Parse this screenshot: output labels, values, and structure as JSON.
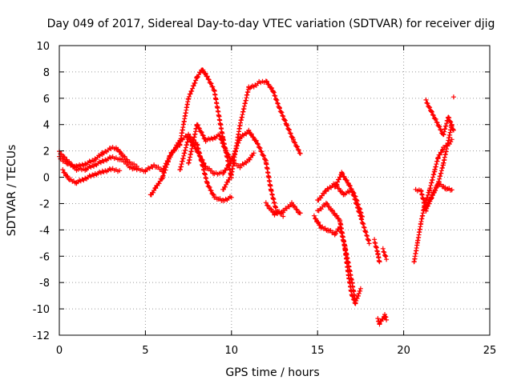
{
  "chart_data": {
    "type": "scatter",
    "title": "Day 049 of 2017, Sidereal Day-to-day VTEC variation (SDTVAR) for receiver djig",
    "xlabel": "GPS time / hours",
    "ylabel": "SDTVAR / TECUs",
    "xlim": [
      0,
      25
    ],
    "ylim": [
      -12,
      10
    ],
    "xticks": [
      0,
      5,
      10,
      15,
      20,
      25
    ],
    "yticks": [
      -12,
      -10,
      -8,
      -6,
      -4,
      -2,
      0,
      2,
      4,
      6,
      8,
      10
    ],
    "grid": true,
    "marker": "+",
    "marker_color": "#ff0000",
    "series": [
      {
        "x": [
          0.0,
          0.5,
          1.0,
          1.5,
          2.0,
          2.5,
          3.0,
          3.3,
          3.6,
          4.0,
          4.5
        ],
        "y": [
          1.5,
          1.0,
          0.8,
          1.0,
          1.3,
          1.8,
          2.2,
          2.2,
          1.8,
          1.2,
          0.8
        ]
      },
      {
        "x": [
          0.0,
          0.5,
          1.0,
          1.5,
          2.0,
          2.5,
          3.0,
          3.5,
          4.0
        ],
        "y": [
          1.9,
          1.2,
          0.6,
          0.6,
          0.9,
          1.2,
          1.5,
          1.4,
          1.0
        ]
      },
      {
        "x": [
          0.2,
          0.6,
          1.0,
          1.5,
          2.0,
          2.5,
          3.0,
          3.5
        ],
        "y": [
          0.5,
          -0.2,
          -0.4,
          -0.1,
          0.2,
          0.4,
          0.6,
          0.5
        ]
      },
      {
        "x": [
          4.0,
          4.5,
          5.0,
          5.5,
          6.0,
          6.5,
          7.0,
          7.5,
          8.0,
          8.3,
          8.6,
          9.0,
          9.5,
          10.0
        ],
        "y": [
          0.8,
          0.6,
          0.5,
          0.9,
          0.5,
          1.8,
          2.5,
          6.0,
          7.6,
          8.2,
          7.6,
          6.6,
          3.0,
          0.0
        ]
      },
      {
        "x": [
          5.3,
          5.6,
          6.0,
          6.4,
          7.0,
          7.5,
          8.0,
          8.3,
          8.6,
          9.0,
          9.5,
          10.0
        ],
        "y": [
          -1.4,
          -0.8,
          0.0,
          1.5,
          2.8,
          3.2,
          2.5,
          1.0,
          -0.5,
          -1.5,
          -1.8,
          -1.5
        ]
      },
      {
        "x": [
          7.5,
          8.0,
          8.5,
          9.0,
          9.3,
          9.6,
          10.0,
          10.5,
          11.0,
          11.3
        ],
        "y": [
          1.0,
          4.0,
          2.8,
          3.0,
          3.2,
          2.2,
          1.2,
          0.8,
          1.3,
          1.8
        ]
      },
      {
        "x": [
          7.0,
          7.5,
          8.0,
          8.5,
          9.0,
          9.5,
          10.0,
          10.5,
          11.0,
          11.5,
          12.0,
          12.3,
          12.6,
          13.0
        ],
        "y": [
          0.5,
          3.0,
          2.0,
          0.8,
          0.3,
          0.3,
          1.2,
          3.0,
          3.5,
          2.6,
          1.2,
          -1.0,
          -2.5,
          -2.9
        ]
      },
      {
        "x": [
          9.5,
          10.0,
          10.5,
          11.0,
          11.3,
          11.6,
          12.0,
          12.4,
          12.8,
          13.2,
          13.6,
          14.0
        ],
        "y": [
          -1.0,
          0.2,
          4.0,
          6.8,
          6.9,
          7.2,
          7.3,
          6.6,
          5.2,
          4.0,
          2.8,
          1.8
        ]
      },
      {
        "x": [
          12.0,
          12.5,
          13.0,
          13.5,
          14.0
        ],
        "y": [
          -2.0,
          -2.8,
          -2.6,
          -2.0,
          -2.8
        ]
      },
      {
        "x": [
          15.0,
          15.5,
          16.0,
          16.5,
          17.0,
          17.5,
          18.0
        ],
        "y": [
          -1.8,
          -1.0,
          -0.5,
          -1.3,
          -1.0,
          -3.0,
          -5.0
        ]
      },
      {
        "x": [
          14.8,
          15.2,
          15.6,
          16.0,
          16.3,
          16.6,
          17.0,
          17.2,
          17.5
        ],
        "y": [
          -3.0,
          -3.8,
          -4.0,
          -4.3,
          -3.8,
          -5.3,
          -8.0,
          -9.5,
          -8.5
        ]
      },
      {
        "x": [
          15.0,
          15.5,
          16.0,
          16.3,
          16.6,
          16.8,
          17.0,
          17.2
        ],
        "y": [
          -2.6,
          -2.0,
          -2.8,
          -3.3,
          -5.5,
          -7.5,
          -9.0,
          -9.6
        ]
      },
      {
        "x": [
          16.0,
          16.4,
          16.8,
          17.2,
          17.6
        ],
        "y": [
          -0.8,
          0.3,
          -0.5,
          -1.5,
          -3.0
        ]
      },
      {
        "x": [
          18.3,
          18.5,
          18.6
        ],
        "y": [
          -4.8,
          -5.8,
          -6.5
        ]
      },
      {
        "x": [
          18.5,
          18.6,
          18.9,
          19.0
        ],
        "y": [
          -10.8,
          -11.1,
          -10.5,
          -10.8
        ]
      },
      {
        "x": [
          18.8,
          19.0
        ],
        "y": [
          -5.5,
          -6.2
        ]
      },
      {
        "x": [
          20.6,
          20.8,
          21.0,
          21.2,
          21.5,
          21.8,
          22.0,
          22.3,
          22.6,
          22.8
        ],
        "y": [
          -6.5,
          -5.0,
          -3.5,
          -2.2,
          -1.0,
          0.5,
          1.5,
          2.2,
          2.5,
          2.8
        ]
      },
      {
        "x": [
          20.7,
          21.0,
          21.3,
          21.6,
          22.0,
          22.3,
          22.6,
          22.8
        ],
        "y": [
          -1.0,
          -1.0,
          -2.5,
          -1.6,
          -0.5,
          1.0,
          2.8,
          4.0
        ]
      },
      {
        "x": [
          21.3,
          21.6,
          22.0,
          22.3,
          22.6,
          22.9
        ],
        "y": [
          5.8,
          5.0,
          4.0,
          3.2,
          4.6,
          3.5
        ]
      },
      {
        "x": [
          21.2,
          21.6,
          22.0,
          22.4,
          22.8
        ],
        "y": [
          -2.5,
          -1.5,
          -0.5,
          -0.8,
          -1.0
        ]
      },
      {
        "x": [
          22.9
        ],
        "y": [
          6.1
        ]
      }
    ]
  }
}
